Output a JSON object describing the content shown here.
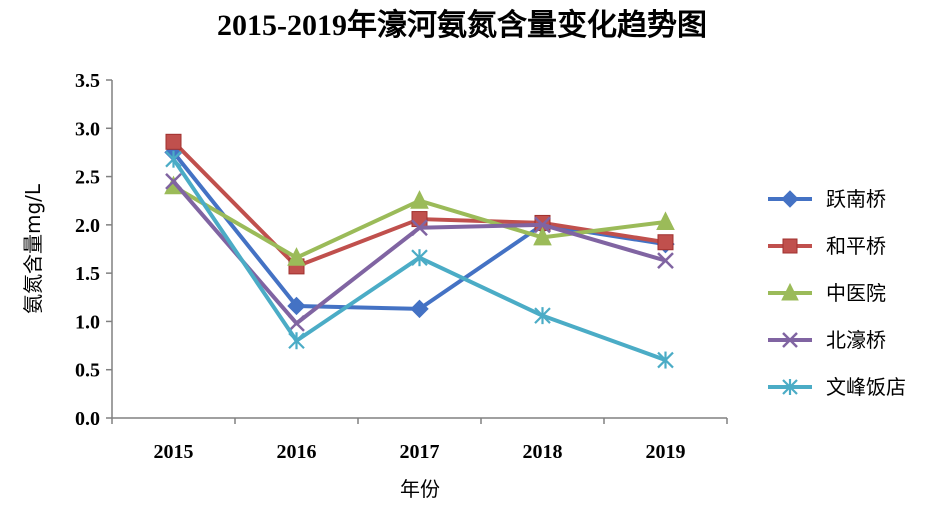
{
  "chart_data": {
    "type": "line",
    "title": "2015-2019年濠河氨氮含量变化趋势图",
    "xlabel": "年份",
    "ylabel": "氨氮含量mg/L",
    "categories": [
      "2015",
      "2016",
      "2017",
      "2018",
      "2019"
    ],
    "ylim": [
      0,
      3.5
    ],
    "yticks": [
      "0.0",
      "0.5",
      "1.0",
      "1.5",
      "2.0",
      "2.5",
      "3.0",
      "3.5"
    ],
    "grid": false,
    "legend_position": "right",
    "series": [
      {
        "name": "跃南桥",
        "values": [
          2.75,
          1.16,
          1.13,
          2.0,
          1.8
        ],
        "color": "#4472C4",
        "marker": "diamond"
      },
      {
        "name": "和平桥",
        "values": [
          2.86,
          1.57,
          2.06,
          2.02,
          1.82
        ],
        "color": "#C0504D",
        "marker": "square"
      },
      {
        "name": "中医院",
        "values": [
          2.4,
          1.66,
          2.25,
          1.87,
          2.03
        ],
        "color": "#9BBB59",
        "marker": "triangle"
      },
      {
        "name": "北濠桥",
        "values": [
          2.45,
          0.98,
          1.97,
          2.0,
          1.63
        ],
        "color": "#8064A2",
        "marker": "x"
      },
      {
        "name": "文峰饭店",
        "values": [
          2.68,
          0.8,
          1.66,
          1.06,
          0.6
        ],
        "color": "#4BACC6",
        "marker": "asterisk"
      }
    ]
  }
}
